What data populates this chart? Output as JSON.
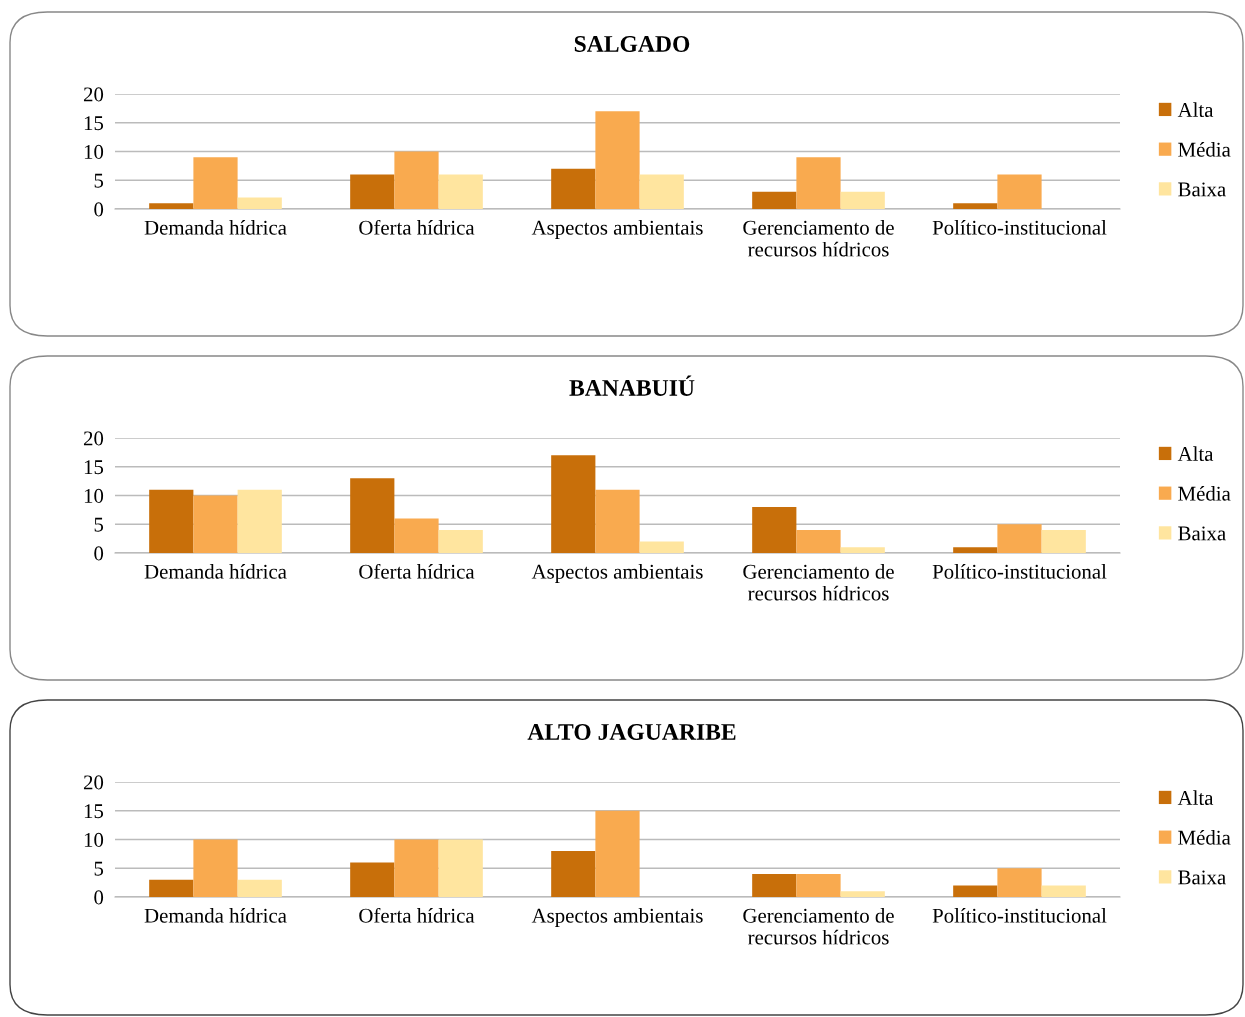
{
  "chart_data": [
    {
      "type": "bar",
      "title": "SALGADO",
      "categories": [
        "Demanda hídrica",
        "Oferta hídrica",
        "Aspectos ambientais",
        "Gerenciamento de\nrecursos hídricos",
        "Político-institucional"
      ],
      "series": [
        {
          "name": "Alta",
          "color": "#c86f0a",
          "values": [
            1,
            6,
            7,
            3,
            1
          ]
        },
        {
          "name": "Média",
          "color": "#f9aa4f",
          "values": [
            9,
            10,
            17,
            9,
            6
          ]
        },
        {
          "name": "Baixa",
          "color": "#ffe59f",
          "values": [
            2,
            6,
            6,
            3,
            0
          ]
        }
      ],
      "ylim": [
        0,
        20
      ],
      "yticks": [
        0,
        5,
        10,
        15,
        20
      ],
      "grid": "y",
      "legend": "right"
    },
    {
      "type": "bar",
      "title": "BANABUIÚ",
      "categories": [
        "Demanda hídrica",
        "Oferta hídrica",
        "Aspectos ambientais",
        "Gerenciamento de\nrecursos hídricos",
        "Político-institucional"
      ],
      "series": [
        {
          "name": "Alta",
          "color": "#c86f0a",
          "values": [
            11,
            13,
            17,
            8,
            1
          ]
        },
        {
          "name": "Média",
          "color": "#f9aa4f",
          "values": [
            10,
            6,
            11,
            4,
            5
          ]
        },
        {
          "name": "Baixa",
          "color": "#ffe59f",
          "values": [
            11,
            4,
            2,
            1,
            4
          ]
        }
      ],
      "ylim": [
        0,
        20
      ],
      "yticks": [
        0,
        5,
        10,
        15,
        20
      ],
      "grid": "y",
      "legend": "right"
    },
    {
      "type": "bar",
      "title": "ALTO JAGUARIBE",
      "categories": [
        "Demanda hídrica",
        "Oferta hídrica",
        "Aspectos ambientais",
        "Gerenciamento de\nrecursos hídricos",
        "Político-institucional"
      ],
      "series": [
        {
          "name": "Alta",
          "color": "#c86f0a",
          "values": [
            3,
            6,
            8,
            4,
            2
          ]
        },
        {
          "name": "Média",
          "color": "#f9aa4f",
          "values": [
            10,
            10,
            15,
            4,
            5
          ]
        },
        {
          "name": "Baixa",
          "color": "#ffe59f",
          "values": [
            3,
            10,
            0,
            1,
            2
          ]
        }
      ],
      "ylim": [
        0,
        20
      ],
      "yticks": [
        0,
        5,
        10,
        15,
        20
      ],
      "grid": "y",
      "legend": "right"
    }
  ]
}
